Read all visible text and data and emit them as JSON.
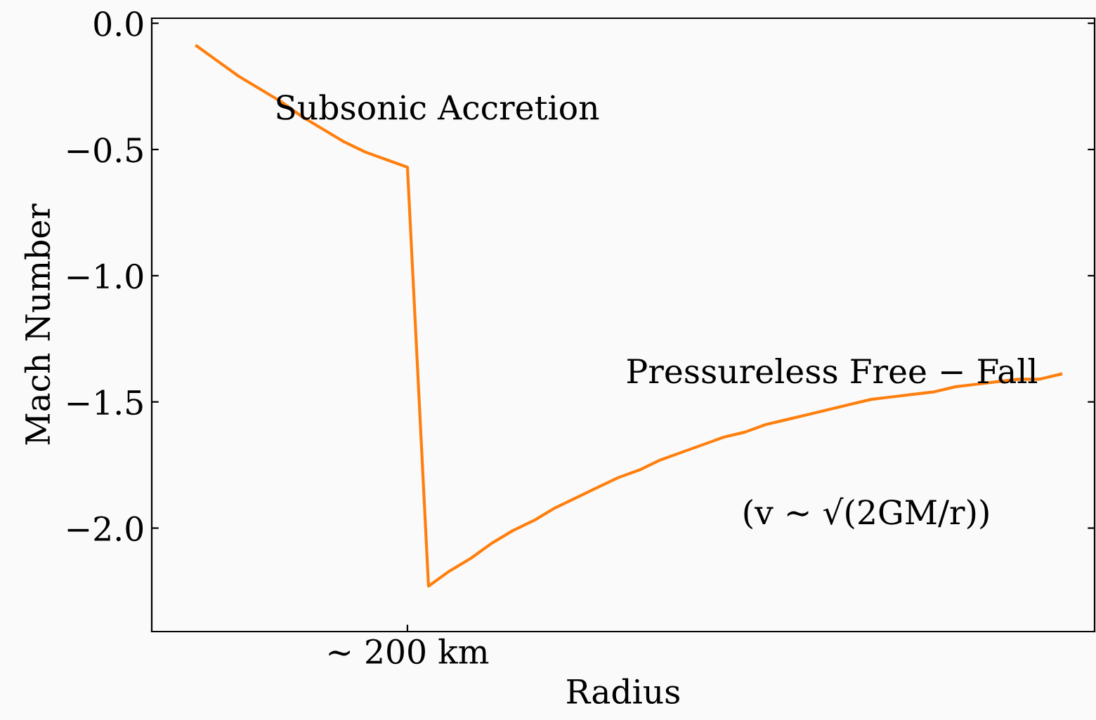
{
  "chart_data": {
    "type": "line",
    "xlabel": "Radius",
    "ylabel": "Mach Number",
    "categories": [
      null,
      null,
      null,
      null,
      null,
      null,
      null,
      null,
      null,
      null,
      "∼ 200 km",
      null,
      null,
      null,
      null,
      null,
      null,
      null,
      null,
      null,
      null,
      null,
      null,
      null,
      null,
      null,
      null,
      null,
      null,
      null,
      null,
      null,
      null,
      null,
      null,
      null,
      null,
      null,
      null,
      null,
      null,
      null
    ],
    "series": [
      {
        "color": "#ff7f0e",
        "values": [
          -0.09,
          -0.15,
          -0.21,
          -0.26,
          -0.31,
          -0.37,
          -0.42,
          -0.47,
          -0.51,
          -0.54,
          -0.57,
          -2.23,
          -2.17,
          -2.12,
          -2.06,
          -2.01,
          -1.97,
          -1.92,
          -1.88,
          -1.84,
          -1.8,
          -1.77,
          -1.73,
          -1.7,
          -1.67,
          -1.64,
          -1.62,
          -1.59,
          -1.57,
          -1.55,
          -1.53,
          -1.51,
          -1.49,
          -1.48,
          -1.47,
          -1.46,
          -1.44,
          -1.43,
          -1.42,
          -1.41,
          -1.41,
          -1.39
        ]
      }
    ],
    "ylim": [
      -2.41,
      0.02
    ],
    "yticks": [
      {
        "value": 0.0,
        "label": "0.0"
      },
      {
        "value": -0.5,
        "label": "−0.5"
      },
      {
        "value": -1.0,
        "label": "−1.0"
      },
      {
        "value": -1.5,
        "label": "−1.5"
      },
      {
        "value": -2.0,
        "label": "−2.0"
      }
    ],
    "annotations": [
      "Subsonic Accretion",
      "Pressureless Free − Fall",
      "(v ∼ √(2GM/r))"
    ],
    "grid": false,
    "legend": false,
    "marker": "none",
    "line_style": "solid"
  }
}
